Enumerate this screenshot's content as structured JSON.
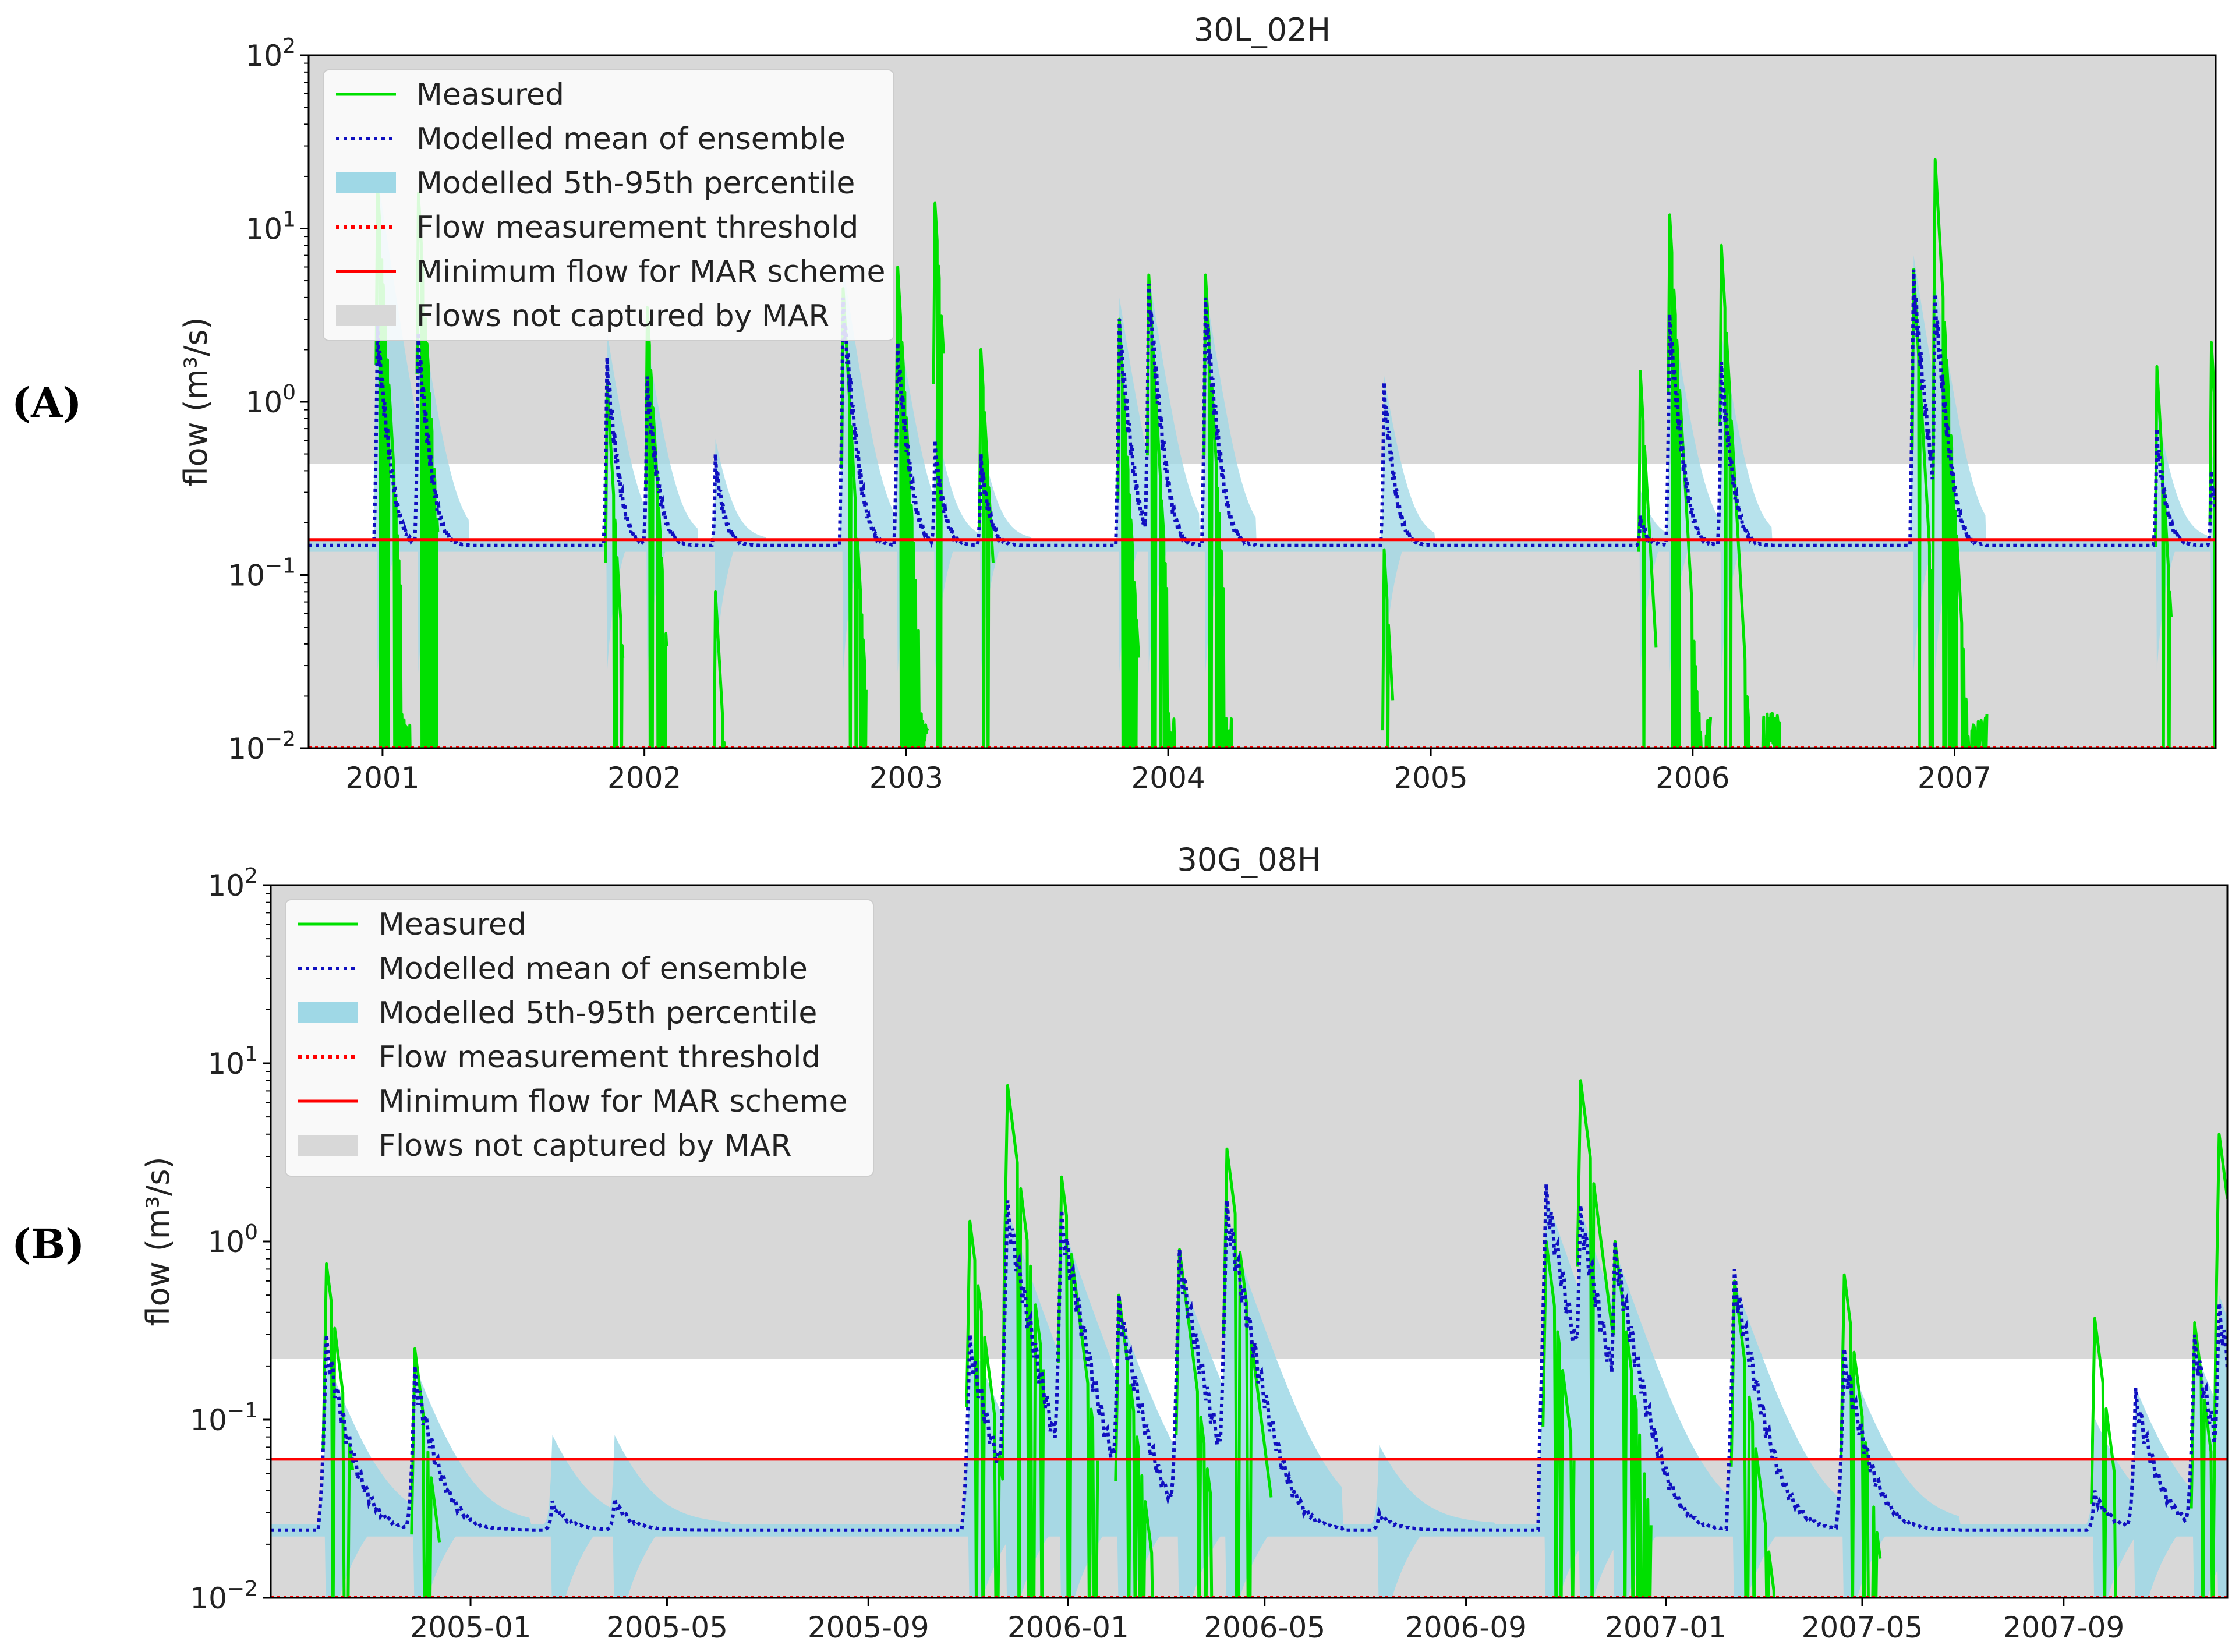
{
  "figure": {
    "panel_labels": [
      "(A)",
      "(B)"
    ]
  },
  "legend_items": [
    {
      "label": "Measured",
      "style": "solid-line",
      "color": "#00e000"
    },
    {
      "label": "Modelled mean of ensemble",
      "style": "dotted-line",
      "color": "#1010c0"
    },
    {
      "label": "Modelled 5th-95th percentile",
      "style": "patch",
      "color": "#9fd8e6"
    },
    {
      "label": "Flow measurement threshold",
      "style": "dotted-line",
      "color": "#ff0000"
    },
    {
      "label": "Minimum flow for MAR scheme",
      "style": "solid-line",
      "color": "#ff0000"
    },
    {
      "label": "Flows not captured by MAR",
      "style": "patch",
      "color": "#d8d8d8"
    }
  ],
  "colors": {
    "measured": "#00e000",
    "mean": "#1010c0",
    "band": "#9fd8e6",
    "grey": "#d8d8d8",
    "threshold": "#ff0000"
  },
  "chart_data": [
    {
      "type": "line",
      "title": "30L_02H",
      "xlabel": "",
      "ylabel": "flow (m³/s)",
      "yscale": "log",
      "ylim": [
        0.01,
        100
      ],
      "xlim": [
        "2000-09-20",
        "2007-12-31"
      ],
      "yticks": [
        0.01,
        0.1,
        1,
        10,
        100
      ],
      "ytick_labels": [
        {
          "base": "10",
          "exp": "−2"
        },
        {
          "base": "10",
          "exp": "−1"
        },
        {
          "base": "10",
          "exp": "0"
        },
        {
          "base": "10",
          "exp": "1"
        },
        {
          "base": "10",
          "exp": "2"
        }
      ],
      "xticks": [
        "2001-01-01",
        "2002-01-01",
        "2003-01-01",
        "2004-01-01",
        "2005-01-01",
        "2006-01-01",
        "2007-01-01"
      ],
      "xtick_labels": [
        "2001",
        "2002",
        "2003",
        "2004",
        "2005",
        "2006",
        "2007"
      ],
      "legend": "top-left",
      "grey_region": {
        "upper_above": 0.44,
        "lower_below": 0.16
      },
      "min_flow_mar": 0.16,
      "flow_measurement_threshold": 0.01,
      "base_flow": 0.148,
      "events": [
        {
          "date": "2000-12-25",
          "mean_peak": 2.8,
          "measured_peak": 18,
          "band_hi": 20,
          "low_days": 35
        },
        {
          "date": "2001-02-20",
          "mean_peak": 2.5,
          "measured_peak": 16,
          "band_hi": 4,
          "low_days": 15
        },
        {
          "date": "2001-11-10",
          "mean_peak": 1.8,
          "measured_peak": 1.3,
          "band_hi": 2.5,
          "low_days": 10
        },
        {
          "date": "2002-01-05",
          "mean_peak": 1.4,
          "measured_peak": 3.5,
          "band_hi": 2.2,
          "low_days": 15
        },
        {
          "date": "2002-04-10",
          "mean_peak": 0.5,
          "measured_peak": 0.08,
          "band_hi": 0.6,
          "low_days": 3
        },
        {
          "date": "2002-10-05",
          "mean_peak": 4.0,
          "measured_peak": 4.5,
          "band_hi": 6,
          "low_days": 20
        },
        {
          "date": "2002-12-20",
          "mean_peak": 2.2,
          "measured_peak": 6,
          "band_hi": 3,
          "low_days": 30
        },
        {
          "date": "2003-02-10",
          "mean_peak": 0.6,
          "measured_peak": 14,
          "band_hi": 0.8,
          "low_days": 0
        },
        {
          "date": "2003-04-15",
          "mean_peak": 0.5,
          "measured_peak": 2.0,
          "band_hi": 0.6,
          "low_days": 5
        },
        {
          "date": "2003-10-25",
          "mean_peak": 3.0,
          "measured_peak": 3.0,
          "band_hi": 4,
          "low_days": 15
        },
        {
          "date": "2003-12-05",
          "mean_peak": 4.8,
          "measured_peak": 5.4,
          "band_hi": 5.5,
          "low_days": 25
        },
        {
          "date": "2004-02-22",
          "mean_peak": 4.0,
          "measured_peak": 5.4,
          "band_hi": 4.5,
          "low_days": 25
        },
        {
          "date": "2004-10-28",
          "mean_peak": 1.3,
          "measured_peak": 0.14,
          "band_hi": 1.4,
          "low_days": 0
        },
        {
          "date": "2005-10-20",
          "mean_peak": 0.22,
          "measured_peak": 1.5,
          "band_hi": 0.3,
          "low_days": 10
        },
        {
          "date": "2005-11-30",
          "mean_peak": 3.2,
          "measured_peak": 12,
          "band_hi": 4,
          "low_days": 45
        },
        {
          "date": "2006-02-10",
          "mean_peak": 1.7,
          "measured_peak": 8,
          "band_hi": 2.5,
          "low_days": 70
        },
        {
          "date": "2006-11-05",
          "mean_peak": 5.8,
          "measured_peak": 5.8,
          "band_hi": 7,
          "low_days": 15
        },
        {
          "date": "2006-12-05",
          "mean_peak": 4.2,
          "measured_peak": 25,
          "band_hi": 5,
          "low_days": 60
        },
        {
          "date": "2007-10-10",
          "mean_peak": 0.7,
          "measured_peak": 1.6,
          "band_hi": 0.9,
          "low_days": 8
        },
        {
          "date": "2007-12-25",
          "mean_peak": 0.4,
          "measured_peak": 2.2,
          "band_hi": 0.5,
          "low_days": 0
        }
      ]
    },
    {
      "type": "line",
      "title": "30G_08H",
      "xlabel": "",
      "ylabel": "flow (m³/s)",
      "yscale": "log",
      "ylim": [
        0.01,
        100
      ],
      "xlim": [
        "2004-09-01",
        "2007-12-10"
      ],
      "yticks": [
        0.01,
        0.1,
        1,
        10,
        100
      ],
      "ytick_labels": [
        {
          "base": "10",
          "exp": "−2"
        },
        {
          "base": "10",
          "exp": "−1"
        },
        {
          "base": "10",
          "exp": "0"
        },
        {
          "base": "10",
          "exp": "1"
        },
        {
          "base": "10",
          "exp": "2"
        }
      ],
      "xticks": [
        "2005-01-01",
        "2005-05-01",
        "2005-09-01",
        "2006-01-01",
        "2006-05-01",
        "2006-09-01",
        "2007-01-01",
        "2007-05-01",
        "2007-09-01"
      ],
      "xtick_labels": [
        "2005-01",
        "2005-05",
        "2005-09",
        "2006-01",
        "2006-05",
        "2006-09",
        "2007-01",
        "2007-05",
        "2007-09"
      ],
      "legend": "top-left",
      "grey_region": {
        "upper_above": 0.22,
        "lower_below": 0.06
      },
      "min_flow_mar": 0.06,
      "flow_measurement_threshold": 0.01,
      "base_flow": 0.024,
      "events": [
        {
          "date": "2004-10-05",
          "mean_peak": 0.3,
          "measured_peak": 0.75,
          "band_hi": 0.22,
          "low_days": 4
        },
        {
          "date": "2004-11-28",
          "mean_peak": 0.2,
          "measured_peak": 0.25,
          "band_hi": 0.2,
          "low_days": 3
        },
        {
          "date": "2005-02-20",
          "mean_peak": 0.035,
          "measured_peak": null,
          "band_hi": 0.08,
          "low_days": 0
        },
        {
          "date": "2005-03-30",
          "mean_peak": 0.036,
          "measured_peak": null,
          "band_hi": 0.08,
          "low_days": 0
        },
        {
          "date": "2005-11-02",
          "mean_peak": 0.3,
          "measured_peak": 1.3,
          "band_hi": 0.3,
          "low_days": 8
        },
        {
          "date": "2005-11-25",
          "mean_peak": 1.7,
          "measured_peak": 7.5,
          "band_hi": 1.5,
          "low_days": 10
        },
        {
          "date": "2005-12-28",
          "mean_peak": 1.5,
          "measured_peak": 2.3,
          "band_hi": 1.3,
          "low_days": 10
        },
        {
          "date": "2006-02-01",
          "mean_peak": 0.5,
          "measured_peak": 0.5,
          "band_hi": 0.4,
          "low_days": 10
        },
        {
          "date": "2006-03-10",
          "mean_peak": 0.9,
          "measured_peak": 0.9,
          "band_hi": 0.7,
          "low_days": 10
        },
        {
          "date": "2006-04-08",
          "mean_peak": 1.7,
          "measured_peak": 3.3,
          "band_hi": 1.3,
          "low_days": 15
        },
        {
          "date": "2006-07-10",
          "mean_peak": 0.03,
          "measured_peak": null,
          "band_hi": 0.07,
          "low_days": 0
        },
        {
          "date": "2006-10-20",
          "mean_peak": 2.1,
          "measured_peak": 1.0,
          "band_hi": 1.8,
          "low_days": 5
        },
        {
          "date": "2006-11-10",
          "mean_peak": 1.6,
          "measured_peak": 8.0,
          "band_hi": 1.5,
          "low_days": 8
        },
        {
          "date": "2006-12-01",
          "mean_peak": 1.0,
          "measured_peak": 1.0,
          "band_hi": 0.9,
          "low_days": 10
        },
        {
          "date": "2007-02-12",
          "mean_peak": 0.7,
          "measured_peak": 0.6,
          "band_hi": 0.6,
          "low_days": 15
        },
        {
          "date": "2007-04-20",
          "mean_peak": 0.25,
          "measured_peak": 0.65,
          "band_hi": 0.25,
          "low_days": 10
        },
        {
          "date": "2007-09-20",
          "mean_peak": 0.04,
          "measured_peak": 0.37,
          "band_hi": 0.1,
          "low_days": 2
        },
        {
          "date": "2007-10-15",
          "mean_peak": 0.15,
          "measured_peak": null,
          "band_hi": 0.15,
          "low_days": 0
        },
        {
          "date": "2007-11-20",
          "mean_peak": 0.3,
          "measured_peak": 0.35,
          "band_hi": 0.25,
          "low_days": 5
        },
        {
          "date": "2007-12-05",
          "mean_peak": 0.45,
          "measured_peak": 4.0,
          "band_hi": 0.5,
          "low_days": 2
        }
      ]
    }
  ]
}
